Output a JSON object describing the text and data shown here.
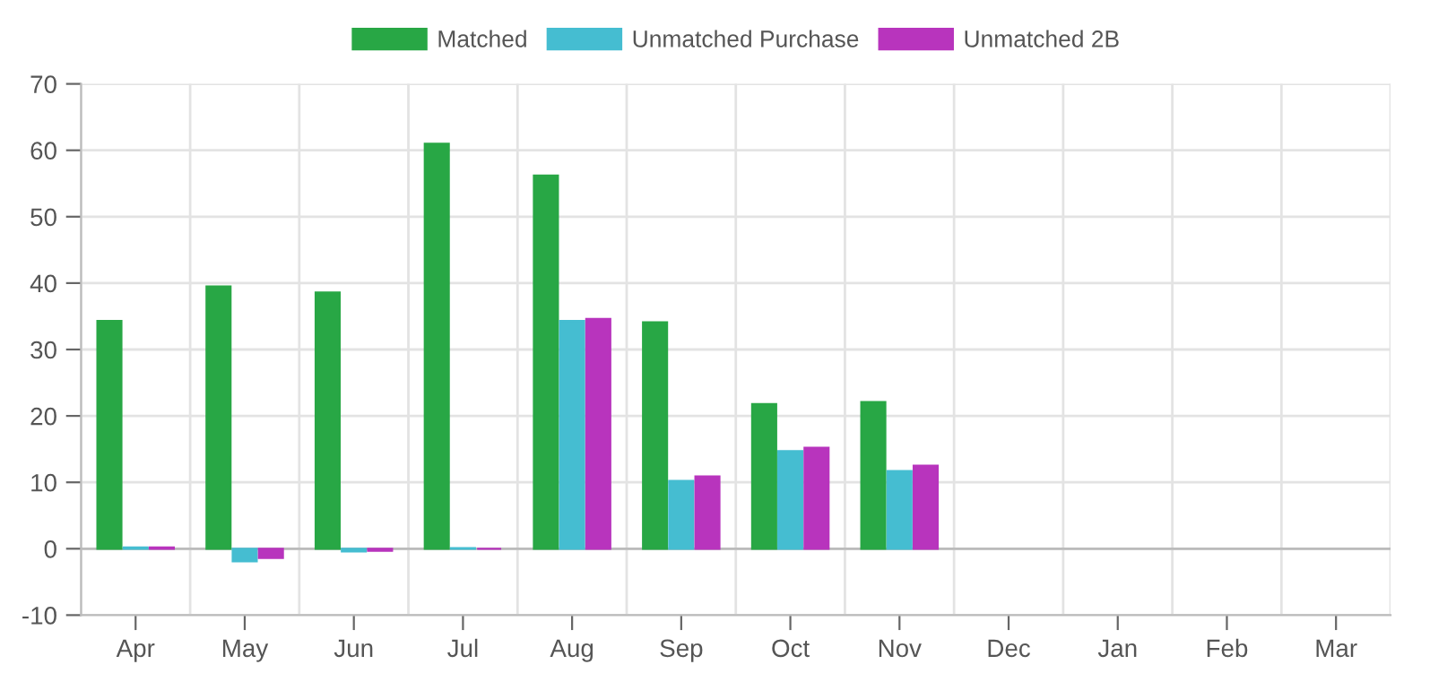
{
  "chart_data": {
    "type": "bar",
    "categories": [
      "Apr",
      "May",
      "Jun",
      "Jul",
      "Aug",
      "Sep",
      "Oct",
      "Nov",
      "Dec",
      "Jan",
      "Feb",
      "Mar"
    ],
    "series": [
      {
        "name": "Matched",
        "color": "#28a745",
        "values": [
          34.3,
          39.5,
          38.6,
          61,
          56.2,
          34.1,
          21.8,
          22.1,
          null,
          null,
          null,
          null
        ]
      },
      {
        "name": "Unmatched Purchase",
        "color": "#45bdd1",
        "values": [
          0.2,
          -1.9,
          -0.4,
          0.1,
          34.3,
          10.2,
          14.7,
          11.7,
          null,
          null,
          null,
          null
        ]
      },
      {
        "name": "Unmatched 2B",
        "color": "#b834bd",
        "values": [
          0.2,
          -1.4,
          -0.3,
          0,
          34.6,
          10.9,
          15.2,
          12.5,
          null,
          null,
          null,
          null
        ]
      }
    ],
    "ylim": [
      -10,
      70
    ],
    "yticks": [
      -10,
      0,
      10,
      20,
      30,
      40,
      50,
      60,
      70
    ],
    "grid": true,
    "legend": "top"
  }
}
